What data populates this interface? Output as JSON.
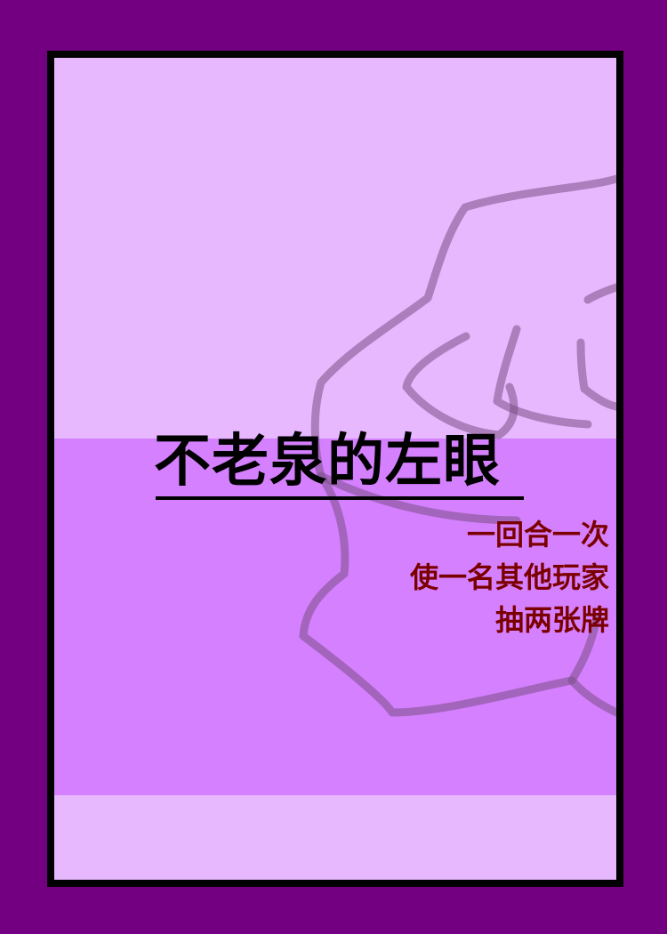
{
  "colors": {
    "outer_background": "#730080",
    "card_border": "#000000",
    "card_background": "#e8b8ff",
    "text_band": "#d580ff",
    "title_text": "#000000",
    "effect_text": "#7a0000"
  },
  "card": {
    "art_icon": "fist-drawing-icon",
    "title": "不老泉的左眼",
    "effect_lines": [
      "一回合一次",
      "使一名其他玩家",
      "抽两张牌"
    ]
  }
}
